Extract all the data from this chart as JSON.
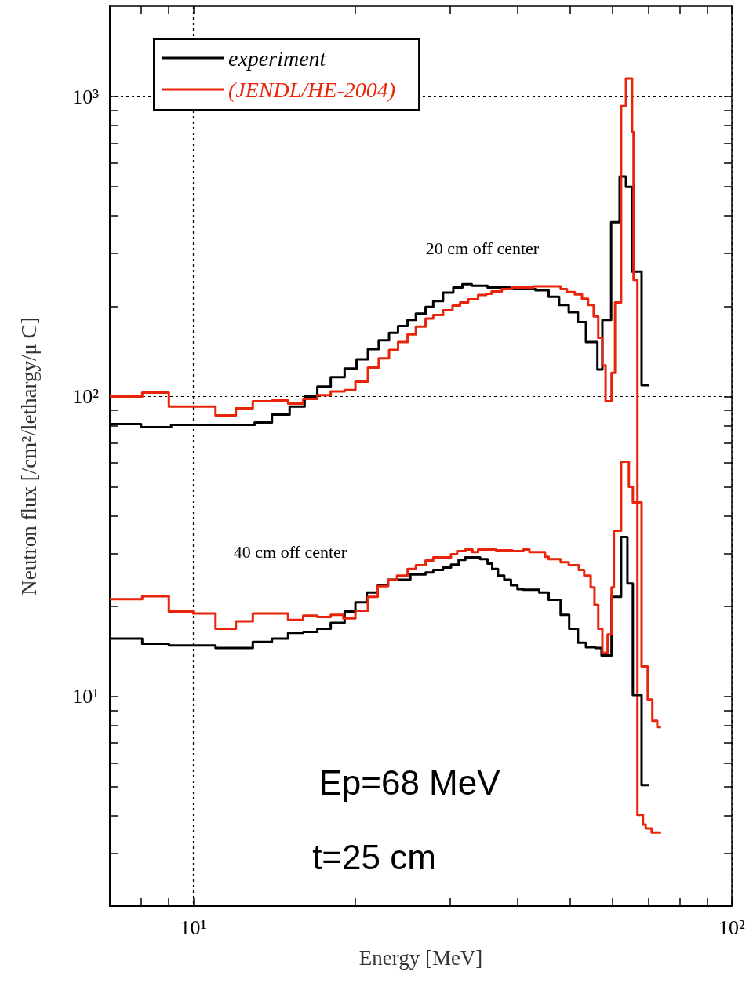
{
  "chart_data": {
    "type": "step",
    "xlabel": "Energy [MeV]",
    "ylabel": "Neutron flux [/cm²/lethargy/μ C]",
    "annotations": [
      "20 cm off center",
      "40 cm off center",
      "Ep=68 MeV",
      "t=25 cm"
    ],
    "log": "xy",
    "grid": true,
    "legend": "top left",
    "xlim": [
      7,
      100
    ],
    "ylim": [
      2,
      2000
    ],
    "xticks": [
      {
        "value": 8,
        "label": null
      },
      {
        "value": 9,
        "label": null
      },
      {
        "value": 10,
        "label": "10¹"
      },
      {
        "value": 20,
        "label": null
      },
      {
        "value": 30,
        "label": null
      },
      {
        "value": 40,
        "label": null
      },
      {
        "value": 50,
        "label": null
      },
      {
        "value": 60,
        "label": null
      },
      {
        "value": 70,
        "label": null
      },
      {
        "value": 80,
        "label": null
      },
      {
        "value": 90,
        "label": null
      },
      {
        "value": 100,
        "label": "10²"
      }
    ],
    "yticks": [
      {
        "value": 3,
        "label": null
      },
      {
        "value": 4,
        "label": null
      },
      {
        "value": 5,
        "label": null
      },
      {
        "value": 6,
        "label": null
      },
      {
        "value": 7,
        "label": null
      },
      {
        "value": 8,
        "label": null
      },
      {
        "value": 9,
        "label": null
      },
      {
        "value": 10,
        "label": "10¹"
      },
      {
        "value": 20,
        "label": null
      },
      {
        "value": 30,
        "label": null
      },
      {
        "value": 40,
        "label": null
      },
      {
        "value": 50,
        "label": null
      },
      {
        "value": 60,
        "label": null
      },
      {
        "value": 70,
        "label": null
      },
      {
        "value": 80,
        "label": null
      },
      {
        "value": 90,
        "label": null
      },
      {
        "value": 100,
        "label": "10²"
      },
      {
        "value": 200,
        "label": null
      },
      {
        "value": 300,
        "label": null
      },
      {
        "value": 400,
        "label": null
      },
      {
        "value": 500,
        "label": null
      },
      {
        "value": 600,
        "label": null
      },
      {
        "value": 700,
        "label": null
      },
      {
        "value": 800,
        "label": null
      },
      {
        "value": 900,
        "label": null
      },
      {
        "value": 1000,
        "label": "10³"
      }
    ],
    "series": [
      {
        "name": "experiment",
        "color": "#000000",
        "x": [
          7.0,
          8.0,
          9.1,
          13.0,
          14.0,
          15.1,
          16.1,
          17.0,
          18.0,
          19.1,
          20.1,
          21.1,
          22.1,
          23.1,
          24.0,
          25.0,
          25.9,
          27.0,
          27.9,
          29.1,
          30.4,
          31.6,
          32.9,
          35.2,
          38.7,
          43.2,
          45.7,
          47.8,
          49.8,
          51.8,
          53.6,
          56.3,
          57.5,
          59.7,
          61.9,
          63.6,
          65.3,
          68.0,
          70.3
        ],
        "values": [
          81,
          79,
          80.5,
          82,
          87,
          92.5,
          100,
          108,
          116,
          124,
          133,
          144,
          154,
          163,
          172,
          180,
          189,
          199,
          208,
          222,
          231,
          237,
          234,
          231,
          228,
          226,
          215,
          202,
          191,
          177,
          152,
          123,
          180,
          381,
          541,
          500,
          261,
          109,
          109
        ]
      },
      {
        "name": "(JENDL/HE-2004)",
        "color": "#e8250a",
        "x": [
          7.0,
          8.04,
          9.01,
          11.0,
          12.0,
          12.9,
          14.0,
          15.0,
          16.0,
          17.0,
          18.0,
          19.1,
          20.0,
          21.1,
          22.1,
          23.1,
          24.0,
          25.0,
          25.9,
          27.0,
          27.9,
          29.1,
          30.3,
          31.3,
          32.4,
          33.8,
          35.0,
          35.8,
          37.4,
          39.1,
          42.8,
          48.1,
          49.4,
          51.1,
          52.7,
          54.1,
          55.4,
          56.5,
          57.5,
          58.3,
          59.8,
          60.7,
          62.3,
          63.6,
          65.3,
          65.7,
          66.8,
          68.4,
          69.2,
          71.0,
          73.9
        ],
        "values": [
          100,
          103,
          92.5,
          86.5,
          91.3,
          96.4,
          97.0,
          94.7,
          98.2,
          101,
          104,
          105,
          112,
          125,
          134,
          143,
          152,
          161,
          171,
          182,
          187,
          194,
          201,
          206,
          211,
          218,
          220,
          224,
          228,
          231,
          233,
          228,
          223,
          219,
          212,
          202,
          185,
          157,
          127,
          96.4,
          120,
          206,
          930,
          1150,
          762,
          245,
          4.03,
          3.74,
          3.63,
          3.52,
          3.52
        ]
      },
      {
        "color": "#000000",
        "x": [
          7.0,
          8.04,
          9.01,
          11.0,
          12.9,
          14.0,
          15.0,
          16.0,
          17.0,
          18.0,
          19.1,
          20.0,
          21.0,
          22.0,
          23.0,
          25.3,
          27.0,
          27.9,
          29.1,
          30.1,
          31.1,
          32.0,
          34.1,
          35.2,
          35.9,
          36.8,
          37.8,
          38.9,
          40.0,
          41.0,
          43.9,
          45.7,
          48.1,
          49.9,
          51.8,
          53.6,
          55.8,
          57.3,
          59.8,
          62.3,
          64.0,
          65.5,
          68.0,
          70.3
        ],
        "values": [
          15.6,
          15.0,
          14.8,
          14.5,
          15.2,
          15.6,
          16.3,
          16.4,
          16.8,
          17.6,
          19.2,
          20.6,
          22.2,
          23.4,
          24.5,
          25.5,
          25.9,
          26.4,
          26.9,
          27.5,
          28.5,
          29.1,
          28.7,
          27.7,
          26.6,
          25.3,
          24.5,
          23.5,
          22.8,
          22.7,
          22.2,
          21.0,
          18.7,
          16.8,
          15.1,
          14.6,
          14.5,
          13.7,
          21.5,
          34.0,
          23.8,
          10.1,
          5.06,
          5.06
        ]
      },
      {
        "color": "#e8250a",
        "x": [
          7.0,
          8.04,
          9.01,
          10.0,
          11.0,
          12.0,
          12.9,
          15.0,
          16.0,
          17.0,
          18.0,
          19.0,
          20.0,
          21.1,
          22.0,
          23.0,
          23.9,
          25.0,
          25.9,
          27.0,
          27.9,
          30.1,
          30.9,
          32.0,
          33.0,
          33.8,
          36.5,
          39.1,
          41.0,
          42.1,
          45.0,
          45.7,
          48.1,
          49.8,
          52.0,
          53.2,
          54.7,
          55.6,
          56.5,
          57.5,
          58.8,
          59.8,
          60.4,
          62.3,
          64.4,
          65.5,
          68.0,
          69.8,
          71.2,
          72.7,
          73.9
        ],
        "values": [
          21.1,
          21.6,
          19.2,
          18.9,
          16.8,
          17.8,
          18.9,
          18.0,
          18.6,
          18.4,
          18.7,
          18.2,
          19.3,
          21.5,
          23.3,
          24.5,
          25.3,
          26.6,
          27.4,
          28.4,
          29.1,
          29.8,
          30.5,
          30.9,
          30.3,
          30.9,
          30.7,
          30.5,
          30.9,
          30.3,
          29.2,
          28.7,
          28.0,
          27.4,
          26.4,
          25.3,
          23.1,
          20.2,
          16.8,
          14.0,
          16.1,
          23.1,
          35.7,
          60.6,
          50.0,
          44.3,
          12.6,
          9.76,
          8.3,
          7.91,
          7.91
        ]
      }
    ]
  }
}
